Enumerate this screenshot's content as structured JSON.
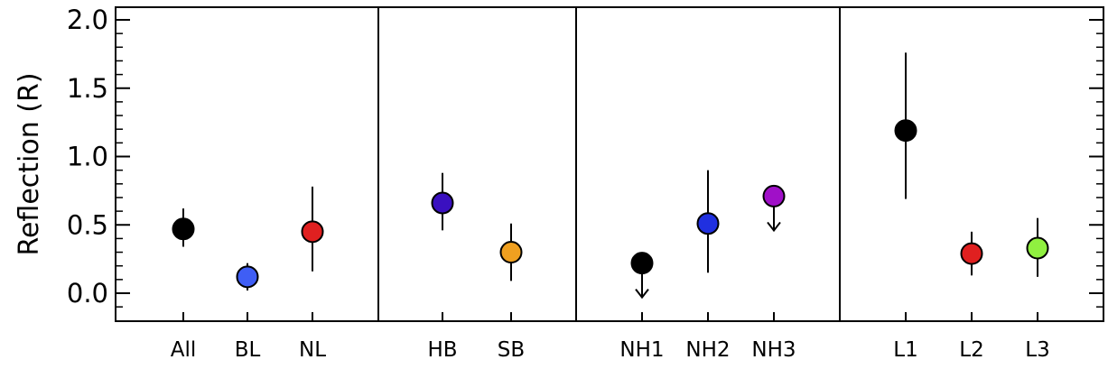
{
  "chart_data": {
    "type": "scatter",
    "title": "",
    "xlabel": "",
    "ylabel": "Reflection  (R)",
    "ylim": [
      -0.2,
      2.1
    ],
    "yticks": [
      "0.0",
      "0.5",
      "1.0",
      "1.5",
      "2.0"
    ],
    "grid": false,
    "panels": [
      {
        "categories": [
          "All",
          "BL",
          "NL"
        ]
      },
      {
        "categories": [
          "HB",
          "SB"
        ]
      },
      {
        "categories": [
          "NH1",
          "NH2",
          "NH3"
        ]
      },
      {
        "categories": [
          "L1",
          "L2",
          "L3"
        ]
      }
    ],
    "points": [
      {
        "label": "All",
        "value": 0.47,
        "err_low": 0.34,
        "err_high": 0.62,
        "upper_limit": false,
        "color": "#000000"
      },
      {
        "label": "BL",
        "value": 0.12,
        "err_low": 0.02,
        "err_high": 0.22,
        "upper_limit": false,
        "color": "#3f5ef5"
      },
      {
        "label": "NL",
        "value": 0.45,
        "err_low": 0.16,
        "err_high": 0.78,
        "upper_limit": false,
        "color": "#e02020"
      },
      {
        "label": "HB",
        "value": 0.66,
        "err_low": 0.46,
        "err_high": 0.88,
        "upper_limit": false,
        "color": "#3a10c0"
      },
      {
        "label": "SB",
        "value": 0.3,
        "err_low": 0.09,
        "err_high": 0.51,
        "upper_limit": false,
        "color": "#f0a020"
      },
      {
        "label": "NH1",
        "value": 0.22,
        "upper_limit": true,
        "color": "#000000"
      },
      {
        "label": "NH2",
        "value": 0.51,
        "err_low": 0.15,
        "err_high": 0.9,
        "upper_limit": false,
        "color": "#2030e0"
      },
      {
        "label": "NH3",
        "value": 0.71,
        "upper_limit": true,
        "color": "#a010c8"
      },
      {
        "label": "L1",
        "value": 1.19,
        "err_low": 0.69,
        "err_high": 1.76,
        "upper_limit": false,
        "color": "#000000"
      },
      {
        "label": "L2",
        "value": 0.29,
        "err_low": 0.13,
        "err_high": 0.45,
        "upper_limit": false,
        "color": "#e02020"
      },
      {
        "label": "L3",
        "value": 0.33,
        "err_low": 0.12,
        "err_high": 0.55,
        "upper_limit": false,
        "color": "#90f040"
      }
    ]
  }
}
